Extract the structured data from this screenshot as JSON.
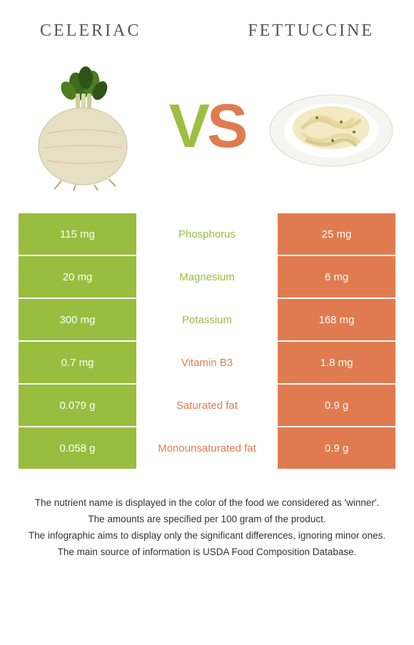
{
  "header": {
    "left_title": "CELERIAC",
    "right_title": "FETTUCCINE"
  },
  "vs": {
    "v": "V",
    "s": "S"
  },
  "colors": {
    "left_bg": "#99bd3f",
    "right_bg": "#e07b50",
    "left_text": "#99bd3f",
    "right_text": "#e07b50",
    "mid_bg": "#ffffff"
  },
  "rows": [
    {
      "left": "115 mg",
      "name": "Phosphorus",
      "right": "25 mg",
      "winner": "left"
    },
    {
      "left": "20 mg",
      "name": "Magnesium",
      "right": "6 mg",
      "winner": "left"
    },
    {
      "left": "300 mg",
      "name": "Potassium",
      "right": "168 mg",
      "winner": "left"
    },
    {
      "left": "0.7 mg",
      "name": "Vitamin B3",
      "right": "1.8 mg",
      "winner": "right"
    },
    {
      "left": "0.079 g",
      "name": "Saturated fat",
      "right": "0.9 g",
      "winner": "right"
    },
    {
      "left": "0.058 g",
      "name": "Monounsaturated fat",
      "right": "0.9 g",
      "winner": "right"
    }
  ],
  "footer": [
    "The nutrient name is displayed in the color of the food we considered as 'winner'.",
    "The amounts are specified per 100 gram of the product.",
    "The infographic aims to display only the significant differences, ignoring minor ones.",
    "The main source of information is USDA Food Composition Database."
  ]
}
